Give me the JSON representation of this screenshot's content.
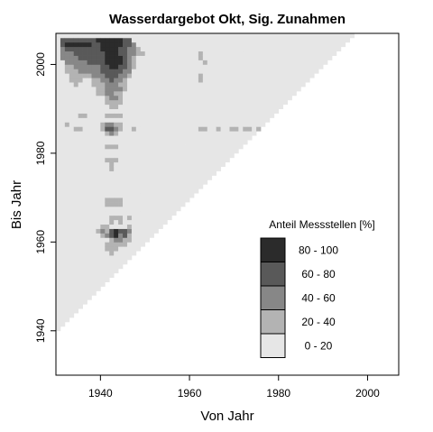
{
  "chart_data": {
    "type": "heatmap",
    "title": "Wasserdargebot Okt, Sig. Zunahmen",
    "xlabel": "Von Jahr",
    "ylabel": "Bis Jahr",
    "xlim": [
      1930,
      2007
    ],
    "ylim": [
      1930,
      2007
    ],
    "x_ticks": [
      "1940",
      "1960",
      "1980",
      "2000"
    ],
    "y_ticks": [
      "1940",
      "1960",
      "1980",
      "2000"
    ],
    "grid": false,
    "legend": {
      "title": "Anteil Messstellen [%]",
      "placement": "bottom-right",
      "classes": [
        {
          "label": "80 - 100",
          "color": "#2b2b2b"
        },
        {
          "label": "60 -  80",
          "color": "#595959"
        },
        {
          "label": "40 -  60",
          "color": "#878787"
        },
        {
          "label": "20 -  40",
          "color": "#b3b3b3"
        },
        {
          "label": "0 -  20",
          "color": "#e6e6e6"
        }
      ]
    },
    "color_scale": [
      "#e6e6e6",
      "#b3b3b3",
      "#878787",
      "#595959",
      "#2b2b2b"
    ],
    "cell_size_years": 1,
    "default_class": 0,
    "domain": "Bis Jahr >= Von Jahr + 10",
    "cells": [
      [
        1931,
        2005,
        3
      ],
      [
        1932,
        2005,
        3
      ],
      [
        1933,
        2005,
        3
      ],
      [
        1934,
        2005,
        3
      ],
      [
        1935,
        2005,
        3
      ],
      [
        1936,
        2005,
        3
      ],
      [
        1937,
        2005,
        3
      ],
      [
        1938,
        2005,
        3
      ],
      [
        1939,
        2005,
        4
      ],
      [
        1940,
        2005,
        4
      ],
      [
        1941,
        2005,
        4
      ],
      [
        1942,
        2005,
        4
      ],
      [
        1943,
        2005,
        4
      ],
      [
        1944,
        2005,
        4
      ],
      [
        1945,
        2005,
        3
      ],
      [
        1946,
        2005,
        3
      ],
      [
        1931,
        2004,
        3
      ],
      [
        1932,
        2004,
        4
      ],
      [
        1933,
        2004,
        4
      ],
      [
        1934,
        2004,
        4
      ],
      [
        1935,
        2004,
        4
      ],
      [
        1936,
        2004,
        4
      ],
      [
        1937,
        2004,
        4
      ],
      [
        1938,
        2004,
        3
      ],
      [
        1939,
        2004,
        3
      ],
      [
        1940,
        2004,
        4
      ],
      [
        1941,
        2004,
        4
      ],
      [
        1942,
        2004,
        4
      ],
      [
        1943,
        2004,
        4
      ],
      [
        1944,
        2004,
        4
      ],
      [
        1945,
        2004,
        3
      ],
      [
        1946,
        2004,
        3
      ],
      [
        1947,
        2004,
        2
      ],
      [
        1931,
        2003,
        2
      ],
      [
        1932,
        2003,
        3
      ],
      [
        1933,
        2003,
        3
      ],
      [
        1934,
        2003,
        3
      ],
      [
        1935,
        2003,
        3
      ],
      [
        1936,
        2003,
        3
      ],
      [
        1937,
        2003,
        3
      ],
      [
        1938,
        2003,
        3
      ],
      [
        1939,
        2003,
        3
      ],
      [
        1940,
        2003,
        4
      ],
      [
        1941,
        2003,
        4
      ],
      [
        1942,
        2003,
        4
      ],
      [
        1943,
        2003,
        4
      ],
      [
        1944,
        2003,
        3
      ],
      [
        1945,
        2003,
        3
      ],
      [
        1946,
        2003,
        2
      ],
      [
        1947,
        2003,
        2
      ],
      [
        1948,
        2003,
        1
      ],
      [
        1931,
        2002,
        2
      ],
      [
        1932,
        2002,
        2
      ],
      [
        1933,
        2002,
        2
      ],
      [
        1934,
        2002,
        3
      ],
      [
        1935,
        2002,
        3
      ],
      [
        1936,
        2002,
        3
      ],
      [
        1937,
        2002,
        3
      ],
      [
        1938,
        2002,
        3
      ],
      [
        1939,
        2002,
        3
      ],
      [
        1940,
        2002,
        3
      ],
      [
        1941,
        2002,
        4
      ],
      [
        1942,
        2002,
        4
      ],
      [
        1943,
        2002,
        4
      ],
      [
        1944,
        2002,
        3
      ],
      [
        1945,
        2002,
        3
      ],
      [
        1946,
        2002,
        2
      ],
      [
        1947,
        2002,
        2
      ],
      [
        1948,
        2002,
        1
      ],
      [
        1949,
        2002,
        1
      ],
      [
        1962,
        2002,
        1
      ],
      [
        1931,
        2001,
        2
      ],
      [
        1932,
        2001,
        2
      ],
      [
        1933,
        2001,
        2
      ],
      [
        1934,
        2001,
        2
      ],
      [
        1935,
        2001,
        3
      ],
      [
        1936,
        2001,
        3
      ],
      [
        1937,
        2001,
        3
      ],
      [
        1938,
        2001,
        3
      ],
      [
        1939,
        2001,
        3
      ],
      [
        1940,
        2001,
        3
      ],
      [
        1941,
        2001,
        4
      ],
      [
        1942,
        2001,
        4
      ],
      [
        1943,
        2001,
        4
      ],
      [
        1944,
        2001,
        4
      ],
      [
        1945,
        2001,
        3
      ],
      [
        1946,
        2001,
        2
      ],
      [
        1947,
        2001,
        1
      ],
      [
        1962,
        2001,
        1
      ],
      [
        1932,
        2000,
        2
      ],
      [
        1933,
        2000,
        2
      ],
      [
        1934,
        2000,
        2
      ],
      [
        1935,
        2000,
        2
      ],
      [
        1936,
        2000,
        2
      ],
      [
        1937,
        2000,
        3
      ],
      [
        1938,
        2000,
        3
      ],
      [
        1939,
        2000,
        3
      ],
      [
        1940,
        2000,
        3
      ],
      [
        1941,
        2000,
        4
      ],
      [
        1942,
        2000,
        4
      ],
      [
        1943,
        2000,
        4
      ],
      [
        1944,
        2000,
        4
      ],
      [
        1945,
        2000,
        3
      ],
      [
        1946,
        2000,
        2
      ],
      [
        1947,
        2000,
        1
      ],
      [
        1963,
        2000,
        1
      ],
      [
        1932,
        1999,
        1
      ],
      [
        1933,
        1999,
        1
      ],
      [
        1934,
        1999,
        2
      ],
      [
        1935,
        1999,
        2
      ],
      [
        1936,
        1999,
        2
      ],
      [
        1937,
        1999,
        2
      ],
      [
        1938,
        1999,
        2
      ],
      [
        1939,
        1999,
        2
      ],
      [
        1940,
        1999,
        3
      ],
      [
        1941,
        1999,
        3
      ],
      [
        1942,
        1999,
        4
      ],
      [
        1943,
        1999,
        4
      ],
      [
        1944,
        1999,
        3
      ],
      [
        1945,
        1999,
        3
      ],
      [
        1946,
        1999,
        2
      ],
      [
        1947,
        1999,
        1
      ],
      [
        1932,
        1998,
        1
      ],
      [
        1933,
        1998,
        1
      ],
      [
        1934,
        1998,
        1
      ],
      [
        1935,
        1998,
        2
      ],
      [
        1936,
        1998,
        2
      ],
      [
        1937,
        1998,
        2
      ],
      [
        1938,
        1998,
        2
      ],
      [
        1939,
        1998,
        2
      ],
      [
        1940,
        1998,
        3
      ],
      [
        1941,
        1998,
        3
      ],
      [
        1942,
        1998,
        3
      ],
      [
        1943,
        1998,
        3
      ],
      [
        1944,
        1998,
        3
      ],
      [
        1945,
        1998,
        2
      ],
      [
        1946,
        1998,
        2
      ],
      [
        1933,
        1997,
        1
      ],
      [
        1934,
        1997,
        1
      ],
      [
        1935,
        1997,
        1
      ],
      [
        1936,
        1997,
        1
      ],
      [
        1937,
        1997,
        1
      ],
      [
        1938,
        1997,
        2
      ],
      [
        1939,
        1997,
        2
      ],
      [
        1940,
        1997,
        2
      ],
      [
        1941,
        1997,
        3
      ],
      [
        1942,
        1997,
        3
      ],
      [
        1943,
        1997,
        3
      ],
      [
        1944,
        1997,
        2
      ],
      [
        1945,
        1997,
        2
      ],
      [
        1946,
        1997,
        1
      ],
      [
        1962,
        1997,
        1
      ],
      [
        1933,
        1996,
        1
      ],
      [
        1934,
        1996,
        1
      ],
      [
        1935,
        1996,
        1
      ],
      [
        1938,
        1996,
        1
      ],
      [
        1939,
        1996,
        1
      ],
      [
        1940,
        1996,
        2
      ],
      [
        1941,
        1996,
        2
      ],
      [
        1942,
        1996,
        3
      ],
      [
        1943,
        1996,
        2
      ],
      [
        1944,
        1996,
        2
      ],
      [
        1945,
        1996,
        1
      ],
      [
        1962,
        1996,
        1
      ],
      [
        1934,
        1995,
        1
      ],
      [
        1938,
        1995,
        1
      ],
      [
        1939,
        1995,
        1
      ],
      [
        1940,
        1995,
        1
      ],
      [
        1941,
        1995,
        2
      ],
      [
        1942,
        1995,
        2
      ],
      [
        1943,
        1995,
        2
      ],
      [
        1944,
        1995,
        1
      ],
      [
        1945,
        1995,
        1
      ],
      [
        1939,
        1994,
        1
      ],
      [
        1940,
        1994,
        1
      ],
      [
        1941,
        1994,
        2
      ],
      [
        1942,
        1994,
        2
      ],
      [
        1943,
        1994,
        2
      ],
      [
        1944,
        1994,
        2
      ],
      [
        1945,
        1994,
        1
      ],
      [
        1939,
        1993,
        1
      ],
      [
        1940,
        1993,
        1
      ],
      [
        1941,
        1993,
        2
      ],
      [
        1942,
        1993,
        2
      ],
      [
        1943,
        1993,
        1
      ],
      [
        1944,
        1993,
        1
      ],
      [
        1941,
        1992,
        1
      ],
      [
        1942,
        1992,
        2
      ],
      [
        1943,
        1992,
        2
      ],
      [
        1944,
        1992,
        1
      ],
      [
        1941,
        1991,
        1
      ],
      [
        1942,
        1991,
        1
      ],
      [
        1943,
        1991,
        1
      ],
      [
        1944,
        1991,
        1
      ],
      [
        1942,
        1990,
        1
      ],
      [
        1943,
        1990,
        1
      ],
      [
        1935,
        1988,
        1
      ],
      [
        1936,
        1988,
        1
      ],
      [
        1941,
        1988,
        1
      ],
      [
        1942,
        1988,
        1
      ],
      [
        1943,
        1988,
        1
      ],
      [
        1944,
        1988,
        1
      ],
      [
        1932,
        1986,
        1
      ],
      [
        1940,
        1986,
        1
      ],
      [
        1941,
        1986,
        2
      ],
      [
        1942,
        1986,
        2
      ],
      [
        1943,
        1986,
        1
      ],
      [
        1944,
        1986,
        1
      ],
      [
        1934,
        1985,
        1
      ],
      [
        1935,
        1985,
        1
      ],
      [
        1940,
        1985,
        1
      ],
      [
        1941,
        1985,
        3
      ],
      [
        1942,
        1985,
        3
      ],
      [
        1943,
        1985,
        2
      ],
      [
        1944,
        1985,
        1
      ],
      [
        1947,
        1985,
        1
      ],
      [
        1962,
        1985,
        1
      ],
      [
        1963,
        1985,
        1
      ],
      [
        1966,
        1985,
        1
      ],
      [
        1969,
        1985,
        1
      ],
      [
        1970,
        1985,
        1
      ],
      [
        1972,
        1985,
        1
      ],
      [
        1973,
        1985,
        1
      ],
      [
        1975,
        1985,
        1
      ],
      [
        1941,
        1984,
        1
      ],
      [
        1942,
        1984,
        2
      ],
      [
        1943,
        1984,
        1
      ],
      [
        1941,
        1981,
        1
      ],
      [
        1942,
        1981,
        1
      ],
      [
        1943,
        1981,
        1
      ],
      [
        1941,
        1978,
        1
      ],
      [
        1942,
        1978,
        1
      ],
      [
        1943,
        1978,
        1
      ],
      [
        1942,
        1977,
        1
      ],
      [
        1942,
        1976,
        1
      ],
      [
        1941,
        1969,
        1
      ],
      [
        1942,
        1969,
        1
      ],
      [
        1943,
        1969,
        1
      ],
      [
        1944,
        1969,
        1
      ],
      [
        1941,
        1968,
        1
      ],
      [
        1942,
        1968,
        1
      ],
      [
        1943,
        1968,
        1
      ],
      [
        1944,
        1968,
        1
      ],
      [
        1942,
        1965,
        1
      ],
      [
        1943,
        1965,
        1
      ],
      [
        1944,
        1965,
        1
      ],
      [
        1946,
        1965,
        1
      ],
      [
        1942,
        1964,
        1
      ],
      [
        1944,
        1964,
        1
      ],
      [
        1940,
        1963,
        1
      ],
      [
        1941,
        1963,
        1
      ],
      [
        1946,
        1963,
        1
      ],
      [
        1939,
        1962,
        1
      ],
      [
        1940,
        1962,
        2
      ],
      [
        1941,
        1962,
        1
      ],
      [
        1942,
        1962,
        3
      ],
      [
        1943,
        1962,
        4
      ],
      [
        1944,
        1962,
        3
      ],
      [
        1945,
        1962,
        3
      ],
      [
        1946,
        1962,
        2
      ],
      [
        1940,
        1961,
        1
      ],
      [
        1941,
        1961,
        2
      ],
      [
        1942,
        1961,
        3
      ],
      [
        1943,
        1961,
        4
      ],
      [
        1944,
        1961,
        2
      ],
      [
        1945,
        1961,
        3
      ],
      [
        1946,
        1961,
        1
      ],
      [
        1942,
        1960,
        1
      ],
      [
        1943,
        1960,
        2
      ],
      [
        1944,
        1960,
        2
      ],
      [
        1945,
        1960,
        1
      ],
      [
        1946,
        1960,
        1
      ],
      [
        1941,
        1959,
        1
      ],
      [
        1942,
        1959,
        1
      ],
      [
        1943,
        1959,
        1
      ],
      [
        1944,
        1959,
        1
      ],
      [
        1945,
        1959,
        1
      ],
      [
        1941,
        1958,
        1
      ],
      [
        1942,
        1958,
        1
      ],
      [
        1943,
        1958,
        1
      ],
      [
        1942,
        1957,
        1
      ]
    ]
  }
}
